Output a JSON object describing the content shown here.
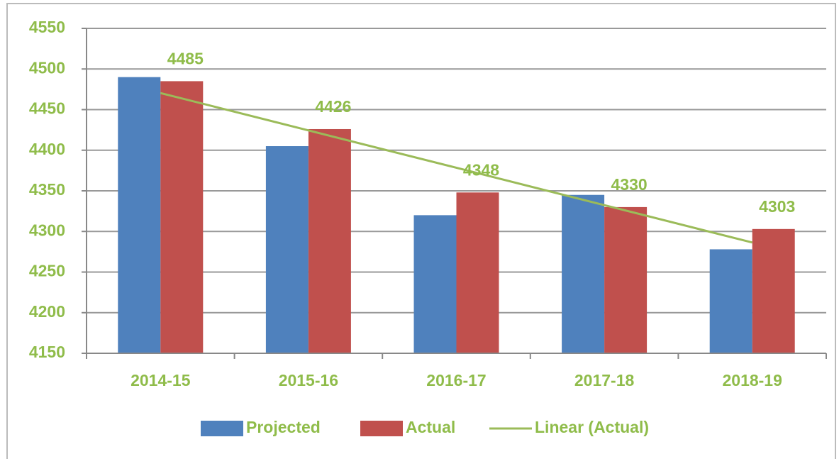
{
  "chart_data": {
    "type": "bar",
    "categories": [
      "2014-15",
      "2015-16",
      "2016-17",
      "2017-18",
      "2018-19"
    ],
    "series": [
      {
        "name": "Projected",
        "color": "#4f81bd",
        "values": [
          4490,
          4405,
          4320,
          4345,
          4278
        ]
      },
      {
        "name": "Actual",
        "color": "#c0504d",
        "values": [
          4485,
          4426,
          4348,
          4330,
          4303
        ],
        "data_labels": true
      },
      {
        "name": "Linear (Actual)",
        "color": "#9bbb59",
        "type": "line",
        "values": [
          4470.4,
          4424.4,
          4378.4,
          4332.4,
          4286.4
        ]
      }
    ],
    "ylim": [
      4150,
      4550
    ],
    "yticks": [
      4150,
      4200,
      4250,
      4300,
      4350,
      4400,
      4450,
      4500,
      4550
    ],
    "grid": true,
    "legend": "bottom"
  }
}
